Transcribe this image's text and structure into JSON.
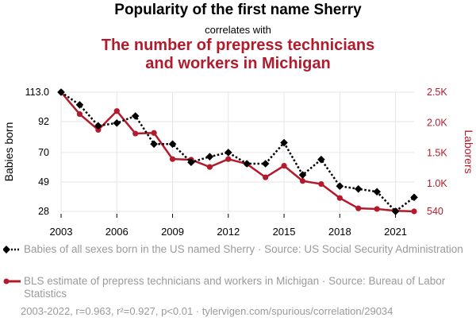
{
  "header": {
    "title": "Popularity of the first name Sherry",
    "subtitle": "correlates with",
    "title2_line1": "The number of prepress technicians",
    "title2_line2": "and workers in Michigan"
  },
  "legend": {
    "series1": "Babies of all sexes born in the US named Sherry · Source: US Social Security Administration",
    "series2": "BLS estimate of prepress technicians and workers in Michigan · Source: Bureau of Labor Statistics"
  },
  "footer": "2003-2022, r=0.963, r²=0.927, p<0.01 · tylervigen.com/spurious/correlation/29034",
  "colors": {
    "series1": "#000000",
    "series2": "#b31b2c",
    "grid": "#e6e6e6"
  },
  "chart_data": {
    "type": "line",
    "x": [
      2003,
      2004,
      2005,
      2006,
      2007,
      2008,
      2009,
      2010,
      2011,
      2012,
      2013,
      2014,
      2015,
      2016,
      2017,
      2018,
      2019,
      2020,
      2021,
      2022
    ],
    "xticks": [
      "2003",
      "2006",
      "2009",
      "2012",
      "2015",
      "2018",
      "2021"
    ],
    "xlim": [
      2003,
      2022
    ],
    "series": [
      {
        "name": "Babies of all sexes born in the US named Sherry",
        "axis": "left",
        "values": [
          113,
          104,
          89,
          91,
          96,
          76,
          76,
          63,
          67,
          70,
          62,
          62,
          77,
          54,
          65,
          46,
          44,
          42,
          28,
          38
        ]
      },
      {
        "name": "BLS estimate of prepress technicians and workers in Michigan",
        "axis": "right",
        "values": [
          2500,
          2140,
          1880,
          2190,
          1820,
          1830,
          1400,
          1390,
          1270,
          1400,
          1320,
          1100,
          1290,
          1040,
          990,
          760,
          590,
          580,
          550,
          540
        ]
      }
    ],
    "left_axis": {
      "label": "Babies born",
      "ticks": [
        28,
        49,
        70,
        92,
        113
      ],
      "tick_labels": [
        "28",
        "49",
        "70",
        "92",
        "113.0"
      ],
      "ylim": [
        28,
        113
      ]
    },
    "right_axis": {
      "label": "Laborers",
      "ticks": [
        540,
        1000,
        1500,
        2000,
        2500
      ],
      "tick_labels": [
        "540",
        "1.0K",
        "1.5K",
        "2.0K",
        "2.5K"
      ],
      "ylim": [
        540,
        2500
      ]
    }
  }
}
